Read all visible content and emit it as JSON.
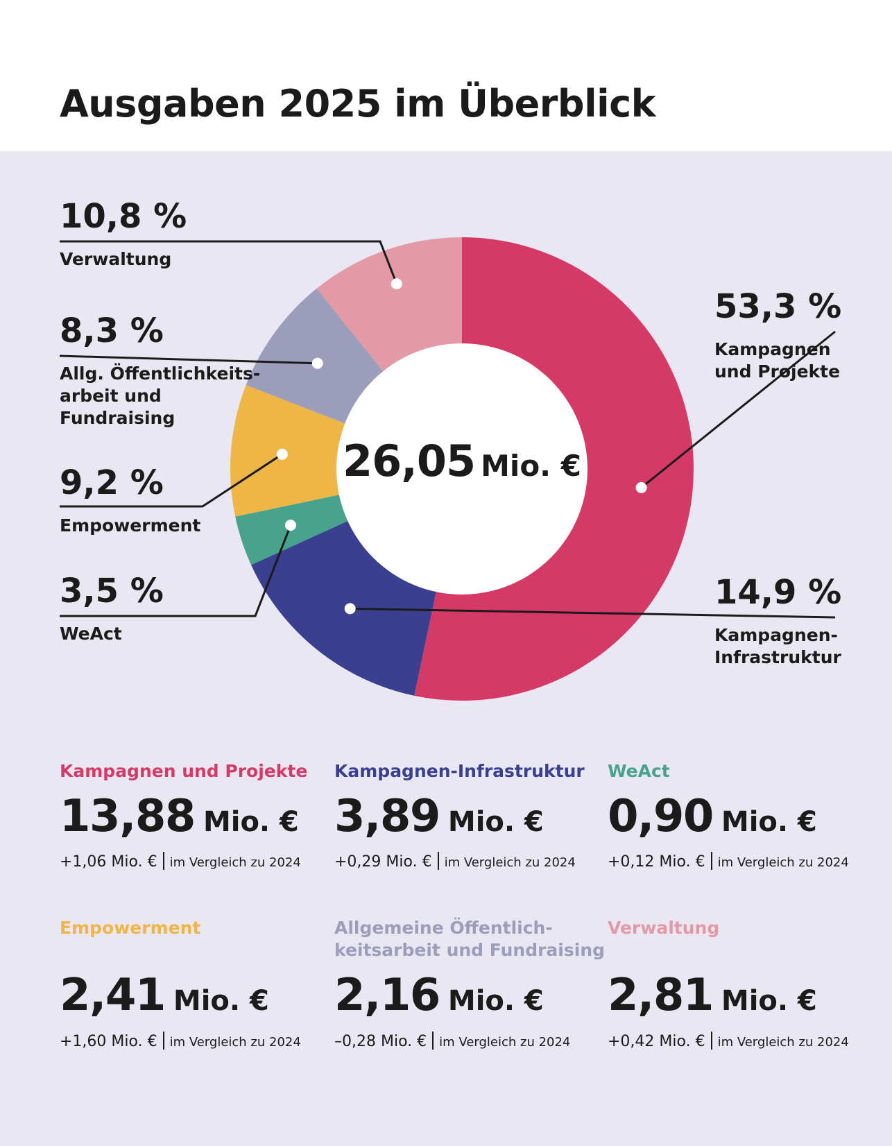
{
  "title": "Ausgaben 2025 im Überblick",
  "center": {
    "value": "26,05",
    "unit": "Mio. €"
  },
  "colors": {
    "kampagnen": "#d43a65",
    "infrastruktur": "#3a3f8f",
    "weact": "#48a38c",
    "empowerment": "#eeb547",
    "oeffentlichkeit": "#9c9dbb",
    "verwaltung": "#e29aa6",
    "background": "#e9e8f2"
  },
  "chart_data": {
    "type": "pie",
    "variant": "donut",
    "total": 26.05,
    "total_unit": "Mio. €",
    "slices": [
      {
        "id": "kampagnen",
        "label": "Kampagnen und Projekte",
        "percent": 53.3,
        "percent_label": "53,3 %",
        "label_lines": [
          "Kampagnen",
          "und Projekte"
        ],
        "color": "#d43a65"
      },
      {
        "id": "infrastruktur",
        "label": "Kampagnen-Infrastruktur",
        "percent": 14.9,
        "percent_label": "14,9 %",
        "label_lines": [
          "Kampagnen-",
          "Infrastruktur"
        ],
        "color": "#3a3f8f"
      },
      {
        "id": "weact",
        "label": "WeAct",
        "percent": 3.5,
        "percent_label": "3,5 %",
        "label_lines": [
          "WeAct"
        ],
        "color": "#48a38c"
      },
      {
        "id": "empowerment",
        "label": "Empowerment",
        "percent": 9.2,
        "percent_label": "9,2 %",
        "label_lines": [
          "Empowerment"
        ],
        "color": "#eeb547"
      },
      {
        "id": "oeffentlichkeit",
        "label": "Allg. Öffentlichkeitsarbeit und Fundraising",
        "percent": 8.3,
        "percent_label": "8,3 %",
        "label_lines": [
          "Allg. Öffentlichkeits-",
          "arbeit und",
          "Fundraising"
        ],
        "color": "#9c9dbb"
      },
      {
        "id": "verwaltung",
        "label": "Verwaltung",
        "percent": 10.8,
        "percent_label": "10,8 %",
        "label_lines": [
          "Verwaltung"
        ],
        "color": "#e29aa6"
      }
    ],
    "start": "top",
    "direction": "clockwise"
  },
  "cards": [
    {
      "name": "Kampagnen und Projekte",
      "name_lines": [
        "Kampagnen und Projekte"
      ],
      "value": "13,88",
      "unit": "Mio. €",
      "change": "+1,06 Mio. €",
      "note": "im Vergleich zu 2024",
      "color": "#d43a65"
    },
    {
      "name": "Kampagnen-Infrastruktur",
      "name_lines": [
        "Kampagnen-Infrastruktur"
      ],
      "value": "3,89",
      "unit": "Mio. €",
      "change": "+0,29 Mio. €",
      "note": "im Vergleich zu 2024",
      "color": "#3a3f8f"
    },
    {
      "name": "WeAct",
      "name_lines": [
        "WeAct"
      ],
      "value": "0,90",
      "unit": "Mio. €",
      "change": "+0,12 Mio. €",
      "note": "im Vergleich zu 2024",
      "color": "#48a38c"
    },
    {
      "name": "Empowerment",
      "name_lines": [
        "Empowerment"
      ],
      "value": "2,41",
      "unit": "Mio. €",
      "change": "+1,60 Mio. €",
      "note": "im Vergleich zu 2024",
      "color": "#eeb547"
    },
    {
      "name": "Allgemeine Öffentlichkeitsarbeit und Fundraising",
      "name_lines": [
        "Allgemeine Öffentlich-",
        "keitsarbeit und Fundraising"
      ],
      "value": "2,16",
      "unit": "Mio. €",
      "change": "–0,28 Mio. €",
      "note": "im Vergleich zu 2024",
      "color": "#9c9dbb"
    },
    {
      "name": "Verwaltung",
      "name_lines": [
        "Verwaltung"
      ],
      "value": "2,81",
      "unit": "Mio. €",
      "change": "+0,42 Mio. €",
      "note": "im Vergleich zu 2024",
      "color": "#e29aa6"
    }
  ]
}
